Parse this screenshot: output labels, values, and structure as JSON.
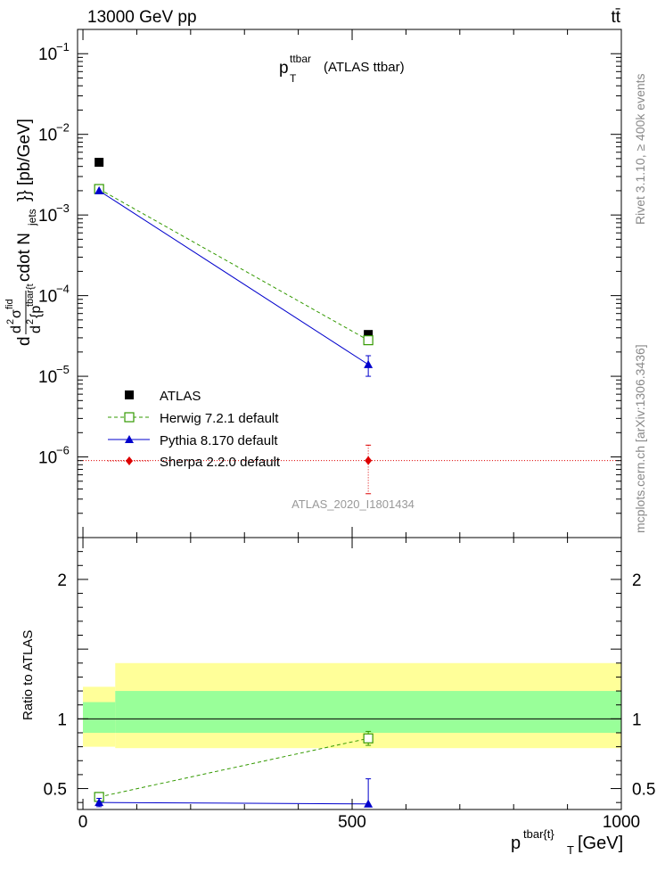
{
  "header": {
    "left": "13000 GeV pp",
    "right": "tt̄"
  },
  "side_text": {
    "rivet": "Rivet 3.1.10, ≥ 400k events",
    "mcplots": "mcplots.cern.ch [arXiv:1306.3436]"
  },
  "colors": {
    "atlas": "#000000",
    "herwig": "#339900",
    "pythia": "#0000cc",
    "sherpa": "#dd0000",
    "band_outer": "#ffff99",
    "band_inner": "#99ff99"
  },
  "chart_data": [
    {
      "type": "scatter",
      "title_main": "p",
      "title_sup": "ttbar",
      "title_sub": "T",
      "title_tail": "(ATLAS ttbar)",
      "ylabel_parts": {
        "d": "d",
        "num_d": "d",
        "num_sup": "2",
        "sigma": "σ",
        "sigma_sup": "fid",
        "den_d": "d",
        "den_sup": "2",
        "den_tail": "{p",
        "den_sub": "tbar{t",
        "cdot": "cdot N",
        "jets_sub": "jets",
        "tail": "}} [pb/GeV]"
      },
      "analysis_label": "ATLAS_2020_I1801434",
      "yscale": "log",
      "xlim": [
        -10,
        1000
      ],
      "ylim": [
        1e-07,
        0.2
      ],
      "yticks": [
        {
          "mant": "10",
          "exp": "−1"
        },
        {
          "mant": "10",
          "exp": "−2"
        },
        {
          "mant": "10",
          "exp": "−3"
        },
        {
          "mant": "10",
          "exp": "−4"
        },
        {
          "mant": "10",
          "exp": "−5"
        },
        {
          "mant": "10",
          "exp": "−6"
        }
      ],
      "legend_position": "bottom-left",
      "series": [
        {
          "name": "ATLAS",
          "style": "square-filled",
          "x": [
            30,
            530
          ],
          "y": [
            0.0045,
            3.3e-05
          ],
          "yerr_lo": [
            0,
            0
          ],
          "yerr_hi": [
            0,
            0
          ]
        },
        {
          "name": "Herwig 7.2.1 default",
          "style": "square-open-dashed",
          "x": [
            30,
            530
          ],
          "y": [
            0.0021,
            2.8e-05
          ],
          "yerr_lo": [
            0,
            0
          ],
          "yerr_hi": [
            0,
            0
          ]
        },
        {
          "name": "Pythia 8.170 default",
          "style": "triangle-solid",
          "x": [
            30,
            530
          ],
          "y": [
            0.002,
            1.4e-05
          ],
          "yerr_lo": [
            0,
            4e-06
          ],
          "yerr_hi": [
            0,
            4e-06
          ]
        },
        {
          "name": "Sherpa 2.2.0 default",
          "style": "diamond-dotted",
          "x": [
            -10,
            530,
            1000
          ],
          "y": [
            9e-07,
            9e-07,
            9e-07
          ],
          "yerr_lo": [
            0,
            5.5e-07,
            0
          ],
          "yerr_hi": [
            0,
            5e-07,
            0
          ]
        }
      ]
    },
    {
      "type": "line",
      "ylabel": "Ratio to ATLAS",
      "xlabel_main": "p",
      "xlabel_sup": "tbar{t}",
      "xlabel_sub": "T",
      "xlabel_tail": "[GeV]",
      "xlim": [
        -10,
        1000
      ],
      "ylim": [
        0.35,
        2.3
      ],
      "xticks": [
        "0",
        "500",
        "1000"
      ],
      "yticks": [
        "0.5",
        "1",
        "2"
      ],
      "bands": {
        "outer": [
          {
            "x0": 0,
            "x1": 60,
            "lo": 0.8,
            "hi": 1.23
          },
          {
            "x0": 60,
            "x1": 1000,
            "lo": 0.79,
            "hi": 1.4
          }
        ],
        "inner": [
          {
            "x0": 0,
            "x1": 60,
            "lo": 0.9,
            "hi": 1.12
          },
          {
            "x0": 60,
            "x1": 1000,
            "lo": 0.9,
            "hi": 1.2
          }
        ]
      },
      "series": [
        {
          "name": "Herwig 7.2.1 default",
          "x": [
            30,
            530
          ],
          "y": [
            0.44,
            0.86
          ],
          "yerr_lo": [
            0.02,
            0.05
          ],
          "yerr_hi": [
            0.02,
            0.05
          ]
        },
        {
          "name": "Pythia 8.170 default",
          "x": [
            30,
            530
          ],
          "y": [
            0.4,
            0.39
          ],
          "yerr_lo": [
            0.03,
            0.02
          ],
          "yerr_hi": [
            0.03,
            0.18
          ]
        }
      ]
    }
  ]
}
